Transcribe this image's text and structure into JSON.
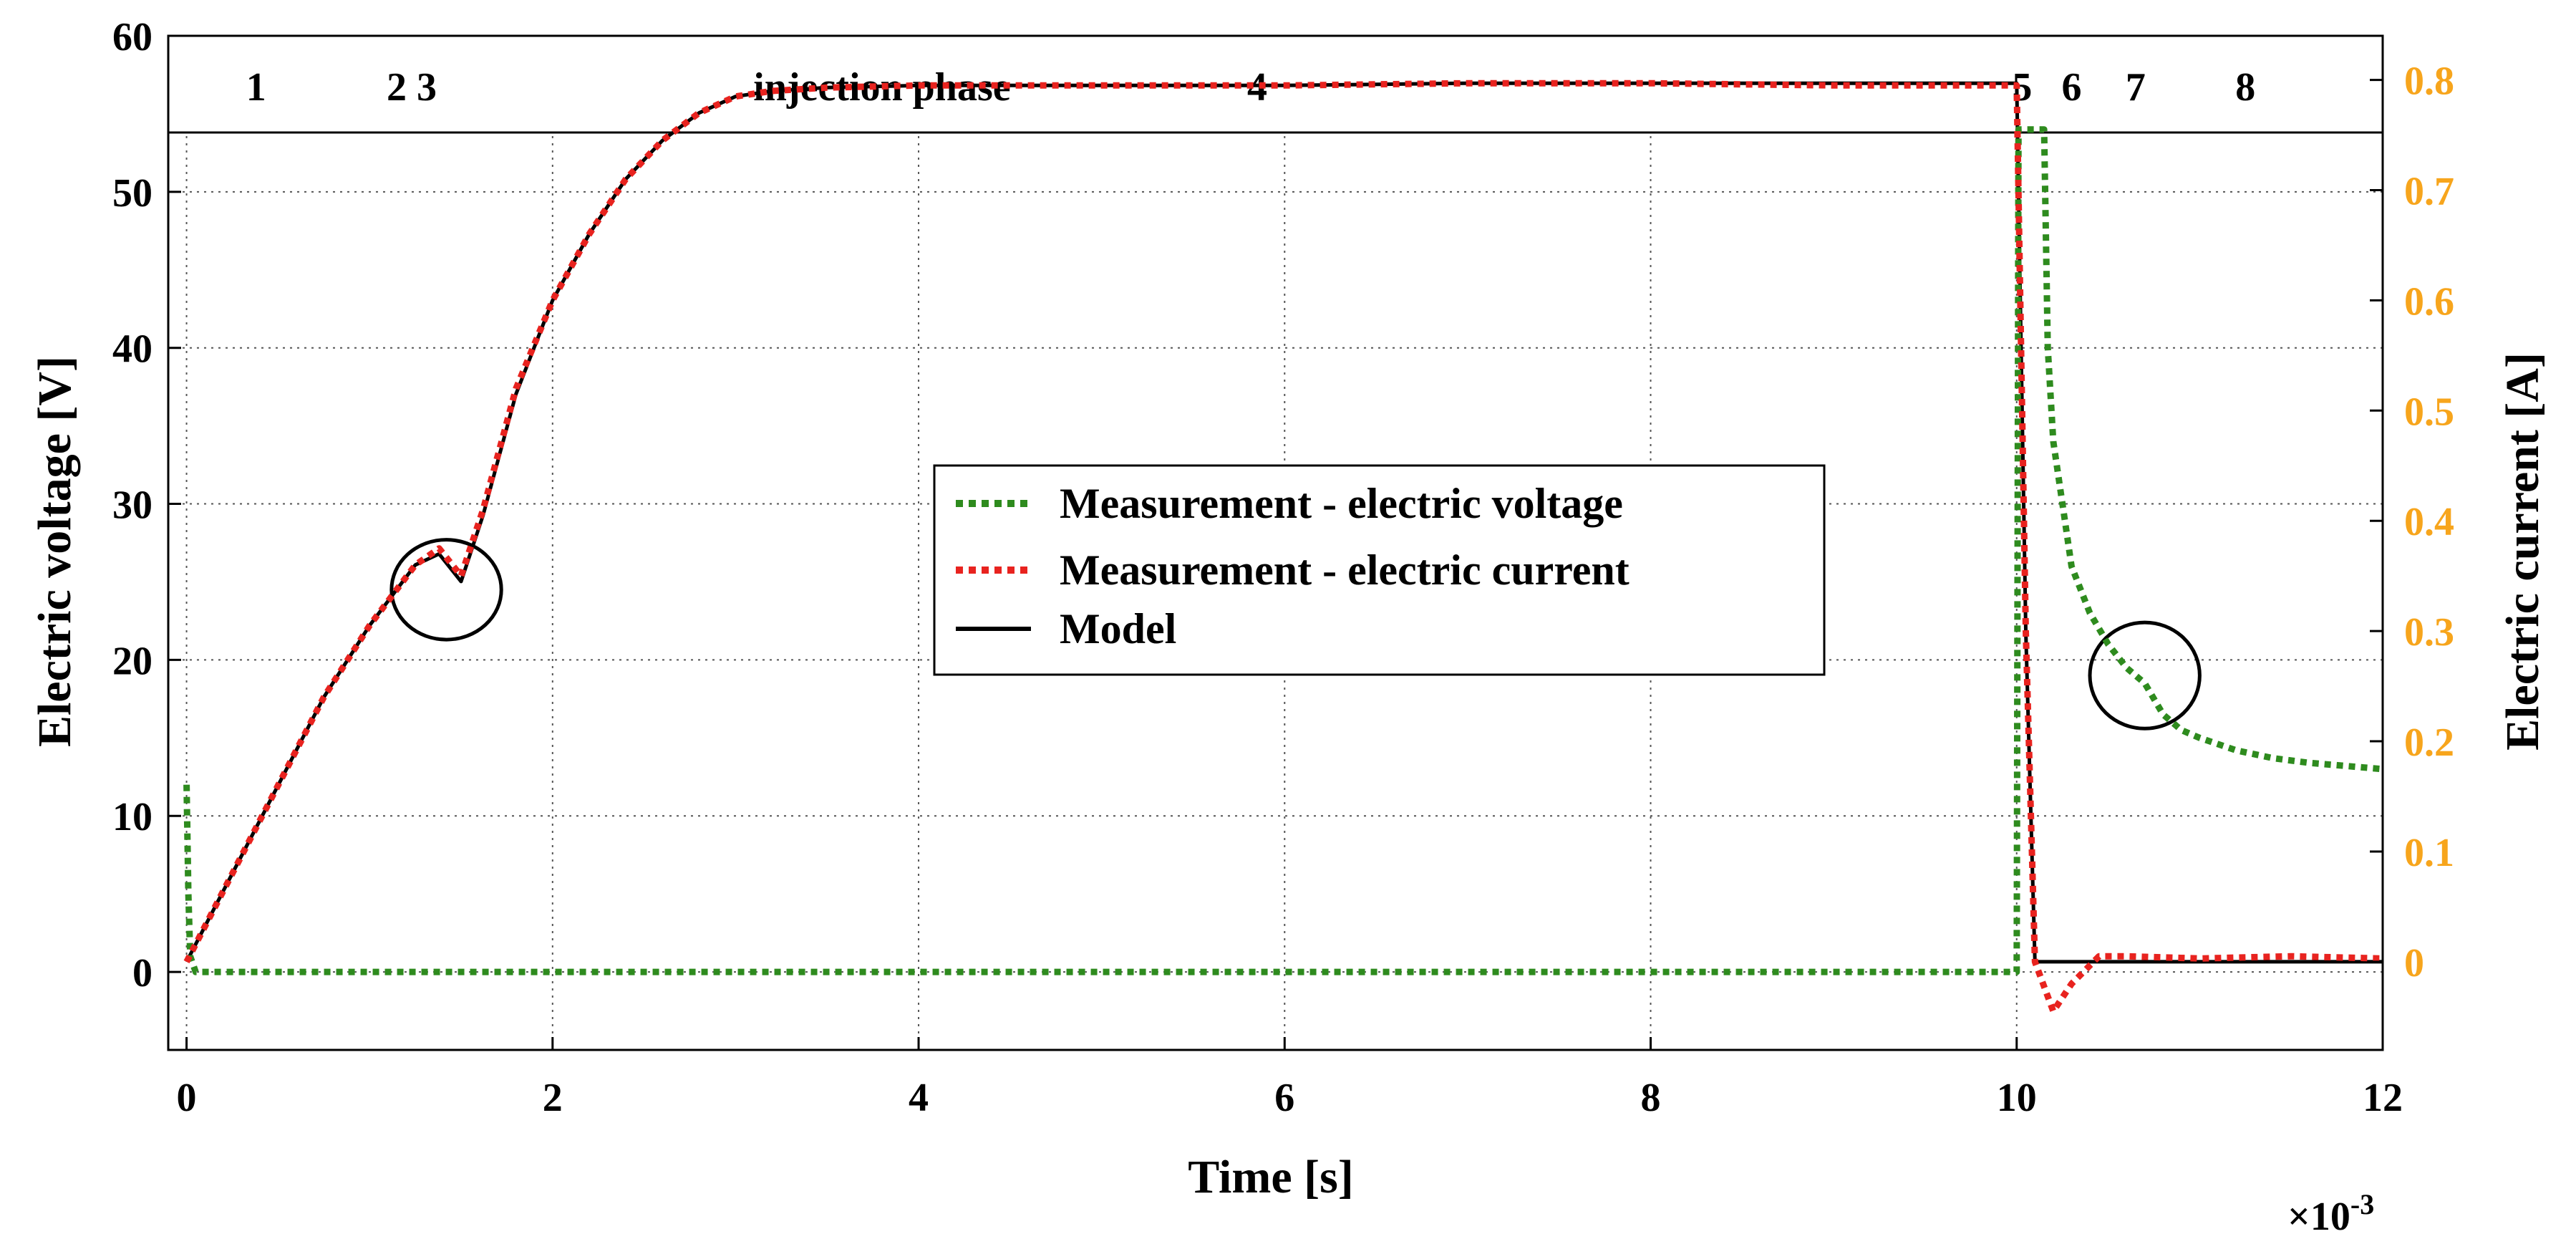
{
  "chart_data": {
    "type": "line",
    "xlabel": "Time [s]",
    "x_multiplier_label": "×10",
    "x_multiplier_exp": "-3",
    "ylabel_left": "Electric voltage [V]",
    "ylabel_right": "Electric current [A]",
    "xlim": [
      -0.1,
      12
    ],
    "ylim_left": [
      -5,
      60
    ],
    "ylim_right": [
      -0.08,
      0.84
    ],
    "x_ticks": [
      "0",
      "2",
      "4",
      "6",
      "8",
      "10",
      "12"
    ],
    "y_left_ticks": [
      "60",
      "50",
      "40",
      "30",
      "20",
      "10",
      "0"
    ],
    "y_right_ticks": [
      "0.8",
      "0.7",
      "0.6",
      "0.5",
      "0.4",
      "0.3",
      "0.2",
      "0.1",
      "0"
    ],
    "grid": true,
    "phase_labels": [
      {
        "text": "1",
        "x": 0.38
      },
      {
        "text": "2 3",
        "x": 1.23
      },
      {
        "text": "injection phase",
        "x": 3.8
      },
      {
        "text": "4",
        "x": 5.85
      },
      {
        "text": "5",
        "x": 10.03
      },
      {
        "text": "6",
        "x": 10.3
      },
      {
        "text": "7",
        "x": 10.65
      },
      {
        "text": "8",
        "x": 11.25
      }
    ],
    "legend": [
      {
        "label": "Measurement - electric voltage",
        "color": "#2E8B1E",
        "style": "dotted"
      },
      {
        "label": "Measurement - electric current",
        "color": "#E8231F",
        "style": "dotted"
      },
      {
        "label": "Model",
        "color": "#000000",
        "style": "solid"
      }
    ],
    "series": [
      {
        "name": "Measurement - electric voltage",
        "axis": "left",
        "x": [
          0,
          0.01,
          0.02,
          0.05,
          10.0,
          10.01,
          10.05,
          10.15,
          10.17,
          10.2,
          10.25,
          10.3,
          10.4,
          10.5,
          10.6,
          10.7,
          10.75,
          10.8,
          10.9,
          11.0,
          11.2,
          11.4,
          11.6,
          11.8,
          12.0
        ],
        "y": [
          12,
          5,
          1,
          0,
          0,
          54,
          54,
          54,
          40,
          34,
          30,
          26,
          23,
          21,
          19.5,
          18.5,
          17.5,
          16.5,
          15.5,
          15,
          14.2,
          13.7,
          13.4,
          13.2,
          13
        ]
      },
      {
        "name": "Measurement - electric current",
        "axis": "right",
        "x": [
          0,
          0.25,
          0.5,
          0.75,
          1.0,
          1.25,
          1.38,
          1.5,
          1.62,
          1.8,
          2.0,
          2.2,
          2.4,
          2.6,
          2.8,
          3.0,
          3.2,
          3.5,
          4.0,
          5.0,
          6.0,
          7.0,
          8.0,
          9.0,
          10.0,
          10.05,
          10.1,
          10.2,
          10.3,
          10.45,
          10.6,
          11.0,
          11.5,
          12.0
        ],
        "y": [
          0,
          0.08,
          0.16,
          0.24,
          0.305,
          0.36,
          0.375,
          0.35,
          0.41,
          0.52,
          0.6,
          0.66,
          0.71,
          0.745,
          0.77,
          0.785,
          0.79,
          0.793,
          0.795,
          0.795,
          0.795,
          0.797,
          0.797,
          0.795,
          0.795,
          0.3,
          0.0,
          -0.045,
          -0.02,
          0.005,
          0.005,
          0.003,
          0.005,
          0.003
        ]
      },
      {
        "name": "Model",
        "axis": "right",
        "x": [
          0,
          0.25,
          0.5,
          0.75,
          1.0,
          1.25,
          1.38,
          1.5,
          1.62,
          1.8,
          2.0,
          2.2,
          2.4,
          2.6,
          2.8,
          3.0,
          3.2,
          3.5,
          4.0,
          5.0,
          6.0,
          7.0,
          8.0,
          9.0,
          10.0,
          10.05,
          10.1,
          10.2,
          12.0
        ],
        "y": [
          0,
          0.08,
          0.16,
          0.24,
          0.305,
          0.36,
          0.37,
          0.345,
          0.405,
          0.515,
          0.6,
          0.66,
          0.71,
          0.745,
          0.77,
          0.785,
          0.79,
          0.793,
          0.795,
          0.795,
          0.795,
          0.797,
          0.797,
          0.797,
          0.797,
          0.3,
          0.0,
          0.0,
          0.0
        ]
      }
    ],
    "annotations": [
      {
        "type": "circle",
        "axis": "left",
        "x": 1.42,
        "y": 24.5,
        "rx_data": 0.3,
        "ry_data": 3.2
      },
      {
        "type": "circle",
        "axis": "left",
        "x": 10.7,
        "y": 19,
        "rx_data": 0.3,
        "ry_data": 3.4
      }
    ]
  }
}
